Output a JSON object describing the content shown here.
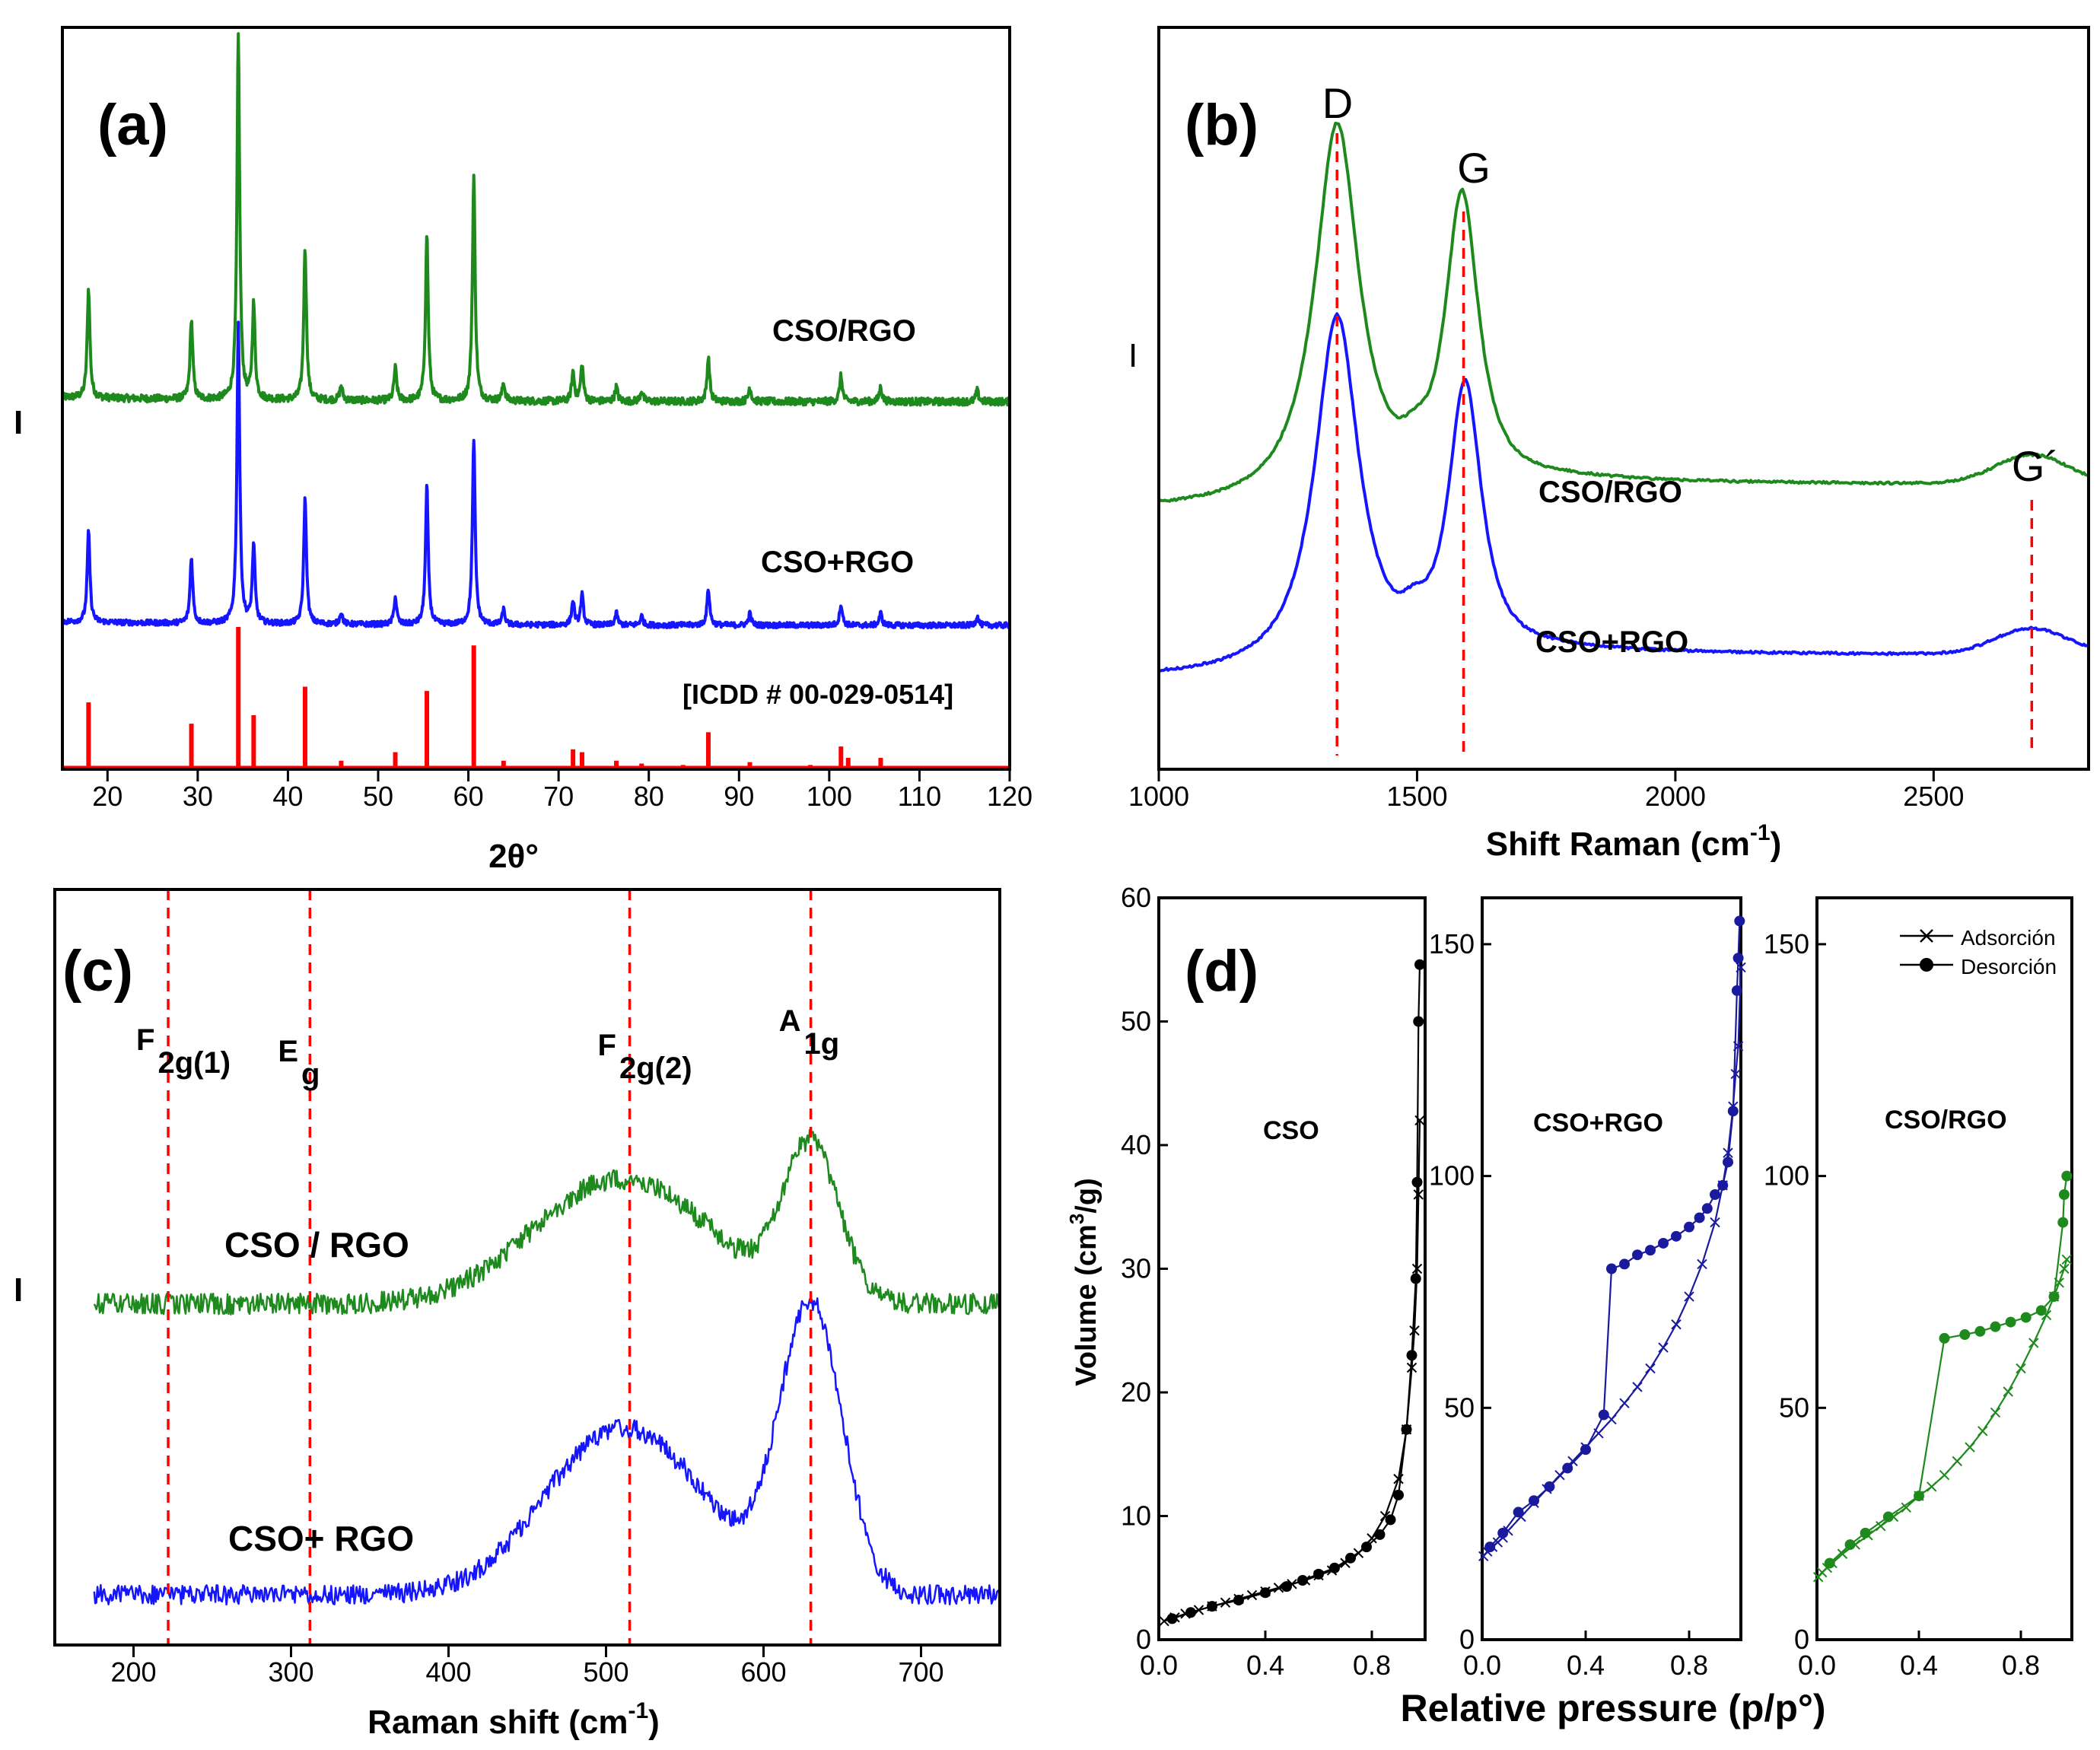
{
  "colors": {
    "green": "#1e8a1e",
    "blue": "#1515ff",
    "red": "#ff0000",
    "navy": "#1a1a9e",
    "black": "#000000"
  },
  "chart_data": [
    {
      "panel": "(a)",
      "type": "line",
      "xlabel": "2θ°",
      "ylabel": "I",
      "xlim": [
        15,
        120
      ],
      "xticks": [
        20,
        30,
        40,
        50,
        60,
        70,
        80,
        90,
        100,
        110,
        120
      ],
      "series": [
        {
          "name": "CSO/RGO",
          "color": "green"
        },
        {
          "name": "CSO+RGO",
          "color": "blue"
        },
        {
          "name": "[ICDD # 00-029-0514]",
          "color": "red",
          "kind": "stick"
        }
      ],
      "peaks": [
        [
          17.9,
          0.3
        ],
        [
          29.3,
          0.22
        ],
        [
          34.5,
          1.0
        ],
        [
          36.2,
          0.26
        ],
        [
          41.9,
          0.42
        ],
        [
          45.9,
          0.04
        ],
        [
          51.9,
          0.09
        ],
        [
          55.4,
          0.46
        ],
        [
          60.6,
          0.62
        ],
        [
          63.9,
          0.05
        ],
        [
          71.6,
          0.08
        ],
        [
          72.6,
          0.1
        ],
        [
          76.4,
          0.04
        ],
        [
          79.2,
          0.03
        ],
        [
          86.6,
          0.12
        ],
        [
          91.2,
          0.04
        ],
        [
          101.3,
          0.07
        ],
        [
          105.7,
          0.04
        ],
        [
          116.4,
          0.03
        ]
      ],
      "reference_sticks": [
        [
          17.9,
          0.47
        ],
        [
          29.3,
          0.32
        ],
        [
          34.5,
          1.0
        ],
        [
          36.2,
          0.38
        ],
        [
          41.9,
          0.58
        ],
        [
          45.9,
          0.06
        ],
        [
          51.9,
          0.12
        ],
        [
          55.4,
          0.55
        ],
        [
          60.6,
          0.87
        ],
        [
          63.9,
          0.06
        ],
        [
          68.9,
          0.02
        ],
        [
          71.6,
          0.14
        ],
        [
          72.6,
          0.12
        ],
        [
          76.4,
          0.06
        ],
        [
          79.2,
          0.04
        ],
        [
          83.8,
          0.03
        ],
        [
          86.6,
          0.26
        ],
        [
          91.2,
          0.05
        ],
        [
          97.9,
          0.03
        ],
        [
          101.3,
          0.16
        ],
        [
          102.1,
          0.08
        ],
        [
          105.7,
          0.08
        ]
      ]
    },
    {
      "panel": "(b)",
      "type": "line",
      "xlabel": "Shift Raman (cm",
      "xlabel_sup": "-1",
      "xlabel_end": ")",
      "ylabel": "I",
      "xlim": [
        1000,
        2800
      ],
      "xticks": [
        1000,
        1500,
        2000,
        2500
      ],
      "series": [
        {
          "name": "CSO/RGO",
          "color": "green"
        },
        {
          "name": "CSO+RGO",
          "color": "blue"
        }
      ],
      "bands": [
        {
          "label": "D",
          "x": 1345
        },
        {
          "label": "G",
          "x": 1590
        },
        {
          "label": "G´",
          "x": 2690
        }
      ]
    },
    {
      "panel": "(c)",
      "type": "line",
      "xlabel": "Raman shift (cm",
      "xlabel_sup": "-1",
      "xlabel_end": ")",
      "ylabel": "I",
      "xlim": [
        150,
        750
      ],
      "xticks": [
        200,
        300,
        400,
        500,
        600,
        700
      ],
      "series": [
        {
          "name": "CSO / RGO",
          "color": "green"
        },
        {
          "name": "CSO+ RGO",
          "color": "blue"
        }
      ],
      "modes": [
        {
          "main": "F",
          "sub": "2g(1)",
          "x": 222
        },
        {
          "main": "E",
          "sub": "g",
          "x": 312
        },
        {
          "main": "F",
          "sub": "2g(2)",
          "x": 515
        },
        {
          "main": "A",
          "sub": "1g",
          "x": 630
        }
      ]
    },
    {
      "panel": "(d)",
      "type": "scatter",
      "xlabel": "Relative pressure (p/p°)",
      "ylabel": "Volume (cm",
      "ylabel_sup": "3",
      "ylabel_end": "/g)",
      "legend": [
        "Adsorción",
        "Desorción"
      ],
      "subplots": [
        {
          "name": "CSO",
          "color": "black",
          "xlim": [
            0,
            1.0
          ],
          "ylim": [
            0,
            60
          ],
          "xticks": [
            0.0,
            0.4,
            0.8
          ],
          "yticks": [
            0,
            10,
            20,
            30,
            40,
            50,
            60
          ],
          "adsorption": [
            [
              0.02,
              1.5
            ],
            [
              0.06,
              1.8
            ],
            [
              0.1,
              2.1
            ],
            [
              0.15,
              2.4
            ],
            [
              0.2,
              2.7
            ],
            [
              0.25,
              3.0
            ],
            [
              0.3,
              3.3
            ],
            [
              0.35,
              3.6
            ],
            [
              0.4,
              3.9
            ],
            [
              0.45,
              4.2
            ],
            [
              0.5,
              4.5
            ],
            [
              0.55,
              4.8
            ],
            [
              0.6,
              5.2
            ],
            [
              0.65,
              5.6
            ],
            [
              0.7,
              6.2
            ],
            [
              0.75,
              7.0
            ],
            [
              0.8,
              8.2
            ],
            [
              0.85,
              10.0
            ],
            [
              0.9,
              13.0
            ],
            [
              0.93,
              17.0
            ],
            [
              0.95,
              22.0
            ],
            [
              0.96,
              25.0
            ],
            [
              0.97,
              30.0
            ],
            [
              0.975,
              36.0
            ],
            [
              0.98,
              42.0
            ]
          ],
          "desorption": [
            [
              0.98,
              54.6
            ],
            [
              0.975,
              50.0
            ],
            [
              0.97,
              37.0
            ],
            [
              0.965,
              29.2
            ],
            [
              0.95,
              23.0
            ],
            [
              0.93,
              17.0
            ],
            [
              0.9,
              11.7
            ],
            [
              0.87,
              9.7
            ],
            [
              0.83,
              8.5
            ],
            [
              0.78,
              7.5
            ],
            [
              0.72,
              6.6
            ],
            [
              0.66,
              5.8
            ],
            [
              0.6,
              5.3
            ],
            [
              0.54,
              4.8
            ],
            [
              0.48,
              4.3
            ],
            [
              0.4,
              3.8
            ],
            [
              0.3,
              3.2
            ],
            [
              0.2,
              2.7
            ],
            [
              0.12,
              2.2
            ],
            [
              0.05,
              1.7
            ]
          ]
        },
        {
          "name": "CSO+RGO",
          "color": "navy",
          "xlim": [
            0,
            1.0
          ],
          "ylim": [
            0,
            160
          ],
          "xticks": [
            0.0,
            0.4,
            0.8
          ],
          "yticks": [
            0,
            50,
            100,
            150
          ],
          "adsorption": [
            [
              0.005,
              18
            ],
            [
              0.02,
              19
            ],
            [
              0.04,
              20
            ],
            [
              0.06,
              21
            ],
            [
              0.08,
              22
            ],
            [
              0.1,
              23.5
            ],
            [
              0.15,
              26.5
            ],
            [
              0.2,
              29.5
            ],
            [
              0.25,
              32.5
            ],
            [
              0.3,
              35.5
            ],
            [
              0.35,
              38.5
            ],
            [
              0.4,
              41.5
            ],
            [
              0.45,
              44.5
            ],
            [
              0.5,
              47.5
            ],
            [
              0.55,
              51
            ],
            [
              0.6,
              54.5
            ],
            [
              0.65,
              58.5
            ],
            [
              0.7,
              63
            ],
            [
              0.75,
              68
            ],
            [
              0.8,
              74
            ],
            [
              0.85,
              81
            ],
            [
              0.9,
              90
            ],
            [
              0.93,
              98
            ],
            [
              0.95,
              105
            ],
            [
              0.97,
              115
            ],
            [
              0.98,
              122
            ],
            [
              0.99,
              128
            ],
            [
              1.0,
              145
            ]
          ],
          "desorption": [
            [
              0.995,
              155
            ],
            [
              0.99,
              147
            ],
            [
              0.985,
              140
            ],
            [
              0.97,
              114
            ],
            [
              0.95,
              103
            ],
            [
              0.93,
              98
            ],
            [
              0.9,
              96
            ],
            [
              0.87,
              93
            ],
            [
              0.84,
              91
            ],
            [
              0.8,
              89
            ],
            [
              0.75,
              87
            ],
            [
              0.7,
              85.5
            ],
            [
              0.65,
              84
            ],
            [
              0.6,
              83
            ],
            [
              0.55,
              81
            ],
            [
              0.5,
              80
            ],
            [
              0.47,
              48.5
            ],
            [
              0.4,
              41
            ],
            [
              0.33,
              37
            ],
            [
              0.26,
              33
            ],
            [
              0.2,
              30
            ],
            [
              0.14,
              27.5
            ],
            [
              0.08,
              23
            ],
            [
              0.03,
              20
            ]
          ]
        },
        {
          "name": "CSO/RGO",
          "color": "green",
          "xlim": [
            0,
            1.0
          ],
          "ylim": [
            0,
            160
          ],
          "xticks": [
            0.0,
            0.4,
            0.8
          ],
          "yticks": [
            0,
            50,
            100,
            150
          ],
          "adsorption": [
            [
              0.005,
              13.5
            ],
            [
              0.02,
              14.5
            ],
            [
              0.04,
              15.5
            ],
            [
              0.06,
              16.5
            ],
            [
              0.1,
              18.5
            ],
            [
              0.15,
              20.5
            ],
            [
              0.2,
              22.5
            ],
            [
              0.25,
              24.5
            ],
            [
              0.3,
              26.5
            ],
            [
              0.35,
              28.5
            ],
            [
              0.4,
              31
            ],
            [
              0.45,
              33
            ],
            [
              0.5,
              35.5
            ],
            [
              0.55,
              38.5
            ],
            [
              0.6,
              41.5
            ],
            [
              0.65,
              45
            ],
            [
              0.7,
              49
            ],
            [
              0.75,
              53.5
            ],
            [
              0.8,
              58.5
            ],
            [
              0.85,
              64
            ],
            [
              0.9,
              70
            ],
            [
              0.93,
              74
            ],
            [
              0.95,
              77
            ],
            [
              0.97,
              80
            ],
            [
              0.98,
              82
            ]
          ],
          "desorption": [
            [
              0.98,
              100
            ],
            [
              0.97,
              96
            ],
            [
              0.965,
              90
            ],
            [
              0.93,
              74
            ],
            [
              0.88,
              71
            ],
            [
              0.82,
              69.5
            ],
            [
              0.76,
              68.5
            ],
            [
              0.7,
              67.5
            ],
            [
              0.64,
              66.5
            ],
            [
              0.58,
              65.8
            ],
            [
              0.5,
              65
            ],
            [
              0.4,
              31
            ],
            [
              0.28,
              26.5
            ],
            [
              0.19,
              23
            ],
            [
              0.13,
              20.5
            ],
            [
              0.05,
              16.5
            ]
          ]
        }
      ]
    }
  ]
}
